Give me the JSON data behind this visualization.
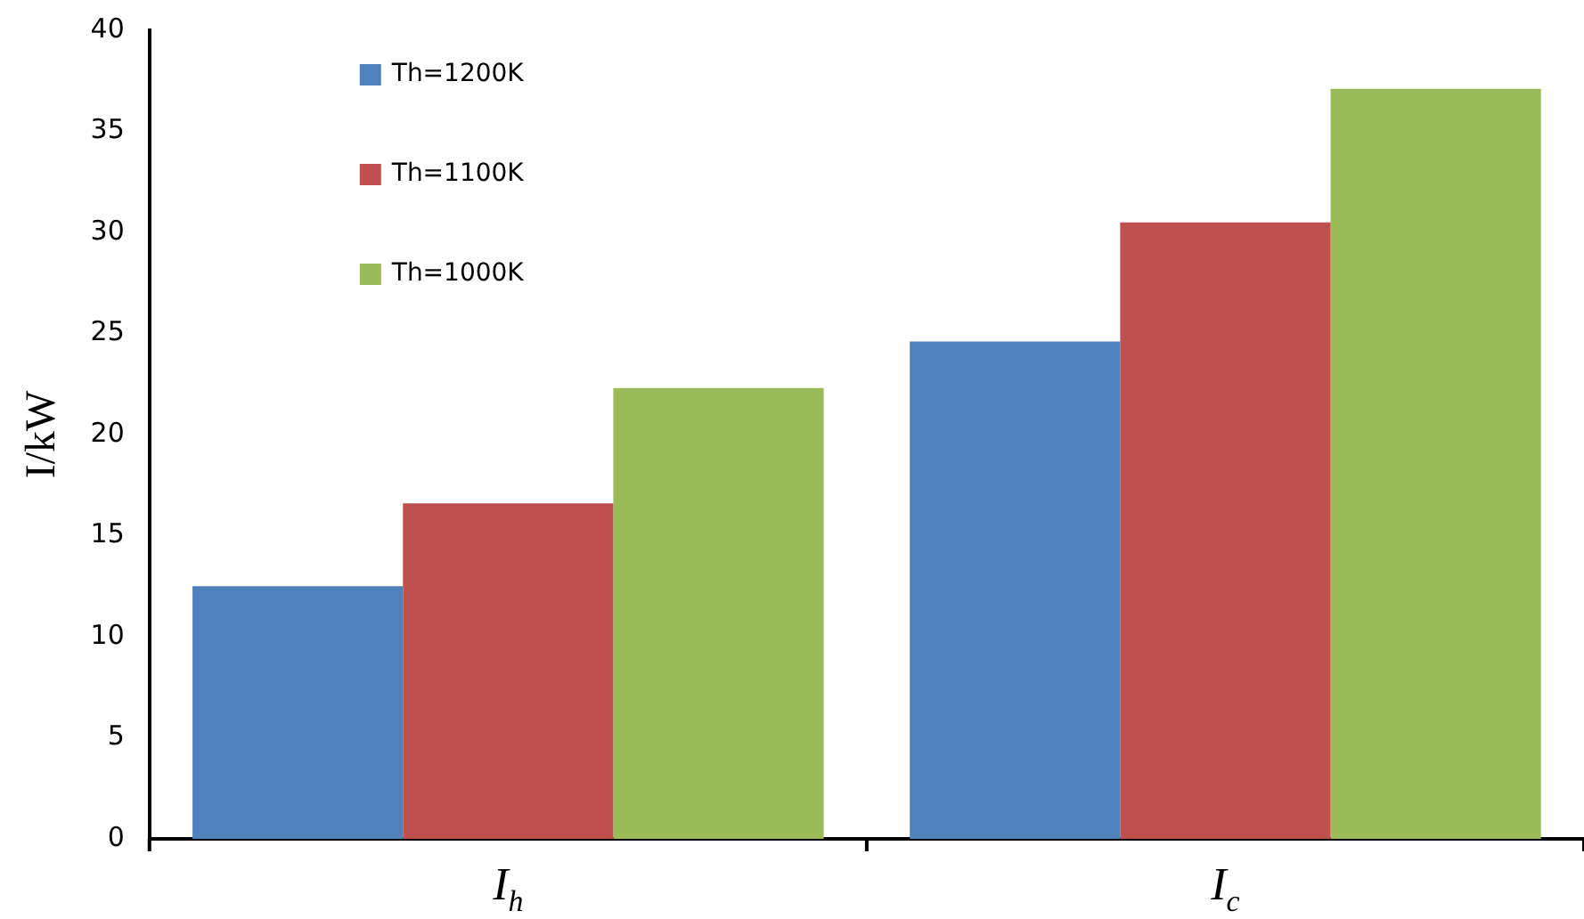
{
  "chart_data": {
    "type": "bar",
    "ylabel": "I/kW",
    "categories": [
      "I$_{h}$",
      "I$_{c}$"
    ],
    "series": [
      {
        "name": "Th=1200K",
        "color": "#4f81bd",
        "values": [
          12.5,
          24.6
        ]
      },
      {
        "name": "Th=1100K",
        "color": "#c0504d",
        "values": [
          16.6,
          30.5
        ]
      },
      {
        "name": "Th=1000K",
        "color": "#9bbb59",
        "values": [
          22.3,
          37.1
        ]
      }
    ],
    "ylim": [
      0,
      40
    ],
    "yticks": [
      0,
      5,
      10,
      15,
      20,
      25,
      30,
      35,
      40
    ],
    "grid": false,
    "legend": "top left"
  }
}
